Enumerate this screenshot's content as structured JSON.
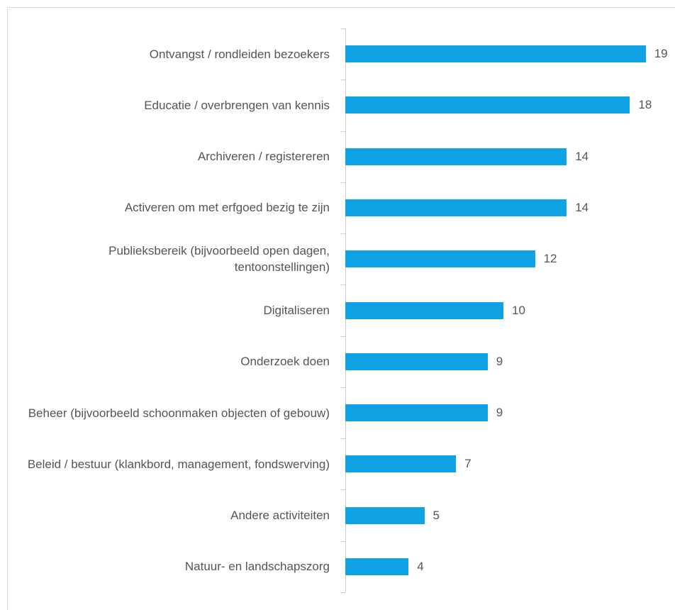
{
  "chart_data": {
    "type": "bar",
    "orientation": "horizontal",
    "color": "#0fa3e6",
    "categories": [
      "Ontvangst / rondleiden bezoekers",
      "Educatie / overbrengen van kennis",
      "Archiveren / registereren",
      "Activeren om met erfgoed bezig te zijn",
      "Publieksbereik (bijvoorbeeld open dagen, tentoonstellingen)",
      "Digitaliseren",
      "Onderzoek doen",
      "Beheer (bijvoorbeeld schoonmaken objecten of gebouw)",
      "Beleid / bestuur (klankbord, management, fondswerving)",
      "Andere activiteiten",
      "Natuur- en landschapszorg"
    ],
    "values": [
      19,
      18,
      14,
      14,
      12,
      10,
      9,
      9,
      7,
      5,
      4
    ]
  }
}
